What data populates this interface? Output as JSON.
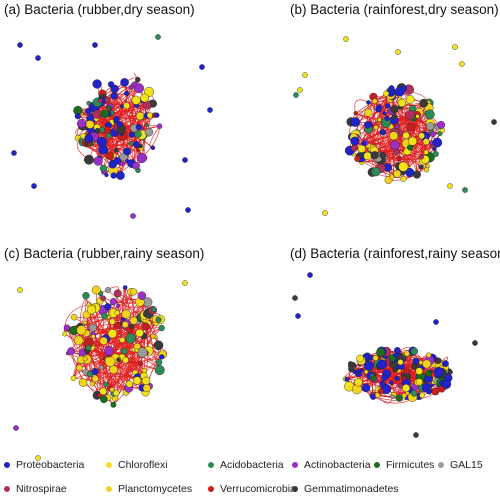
{
  "panels": [
    {
      "id": "a",
      "title": "(a) Bacteria (rubber,dry season)"
    },
    {
      "id": "b",
      "title": "(b) Bacteria (rainforest,dry season)"
    },
    {
      "id": "c",
      "title": "(c) Bacteria (rubber,rainy season)"
    },
    {
      "id": "d",
      "title": "(d) Bacteria (rainforest,rainy season)"
    }
  ],
  "legend": [
    {
      "label": "Proteobacteria",
      "color": "#1f23c8"
    },
    {
      "label": "Chloroflexi",
      "color": "#f2e21a"
    },
    {
      "label": "Acidobacteria",
      "color": "#2e8b57"
    },
    {
      "label": "Actinobacteria",
      "color": "#9b30c8"
    },
    {
      "label": "Firmicutes",
      "color": "#1b6e1b"
    },
    {
      "label": "GAL15",
      "color": "#9a9a9a"
    },
    {
      "label": "Gemmatimonadetes",
      "color": "#3a3a3a"
    },
    {
      "label": "Nitrospirae",
      "color": "#b0305a"
    },
    {
      "label": "Planctomycetes",
      "color": "#f5d21a"
    },
    {
      "label": "Verrucomicrobia",
      "color": "#c81e1e"
    }
  ],
  "edge_color": "#e02020"
}
